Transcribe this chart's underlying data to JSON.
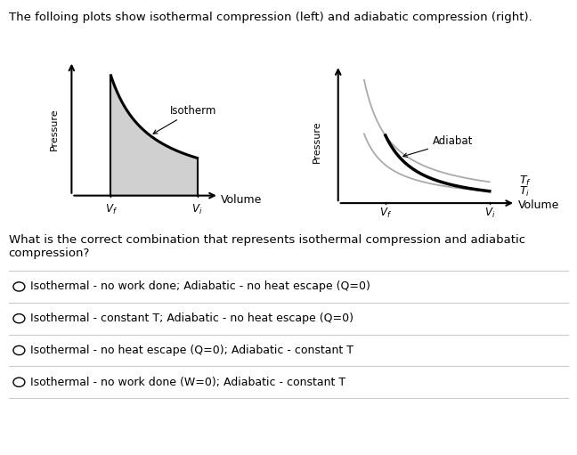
{
  "title": "The folloing plots show isothermal compression (left) and adiabatic compression (right).",
  "title_fontsize": 9.5,
  "bg_color": "#ffffff",
  "question_text1": "What is the correct combination that represents isothermal compression and adiabatic",
  "question_text2": "compression?",
  "options": [
    "Isothermal - no work done; Adiabatic - no heat escape (Q=0)",
    "Isothermal - constant T; Adiabatic - no heat escape (Q=0)",
    "Isothermal - no heat escape (Q=0); Adiabatic - constant T",
    "Isothermal - no work done (W=0); Adiabatic - constant T"
  ],
  "left_xlabel": "Volume",
  "left_ylabel": "Pressure",
  "left_vf_label": "V_f",
  "left_vi_label": "V_i",
  "left_curve_label": "Isotherm",
  "right_xlabel": "Volume",
  "right_ylabel": "Pressure",
  "right_vf_label": "V_f",
  "right_vi_label": "V_i",
  "right_adiabat_label": "Adiabat",
  "right_tf_label": "T_f",
  "right_ti_label": "T_i",
  "curve_color": "#000000",
  "shade_color": "#d0d0d0",
  "isotherm_gray": "#aaaaaa",
  "option_fontsize": 9,
  "ylabel_fontsize": 8,
  "axis_label_fontsize": 9
}
